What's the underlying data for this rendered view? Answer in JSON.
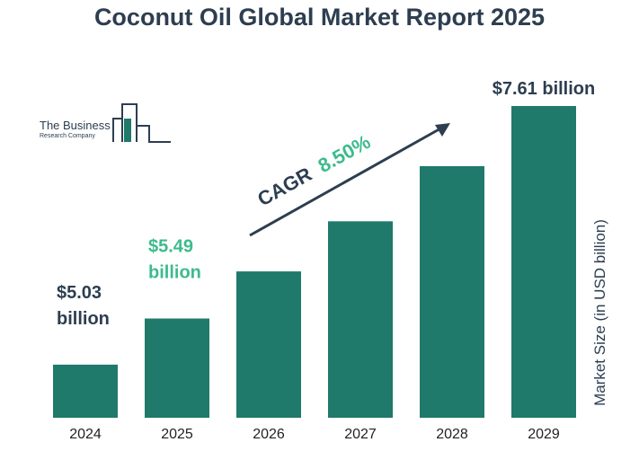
{
  "title": "Coconut Oil Global Market Report 2025",
  "logo": {
    "line1": "The Business",
    "line2": "Research Company"
  },
  "colors": {
    "bar": "#1f7a6b",
    "dark_text": "#2d3e50",
    "highlight_text": "#3dbb8c"
  },
  "annotations": {
    "cagr_label": "CAGR",
    "cagr_value": "8.50%"
  },
  "chart_data": {
    "type": "bar",
    "categories": [
      "2024",
      "2025",
      "2026",
      "2027",
      "2028",
      "2029"
    ],
    "values": [
      5.03,
      5.49,
      5.96,
      6.46,
      7.01,
      7.61
    ],
    "data_labels": [
      {
        "index": 0,
        "lines": [
          "$5.03",
          "billion"
        ],
        "color": "#2d3e50"
      },
      {
        "index": 1,
        "lines": [
          "$5.49",
          "billion"
        ],
        "color": "#3dbb8c"
      },
      {
        "index": 5,
        "lines": [
          "$7.61 billion"
        ],
        "color": "#2d3e50"
      }
    ],
    "ylabel": "Market Size (in USD billion)",
    "xlabel": "",
    "ylim": [
      4.5,
      7.61
    ],
    "grid": false
  }
}
